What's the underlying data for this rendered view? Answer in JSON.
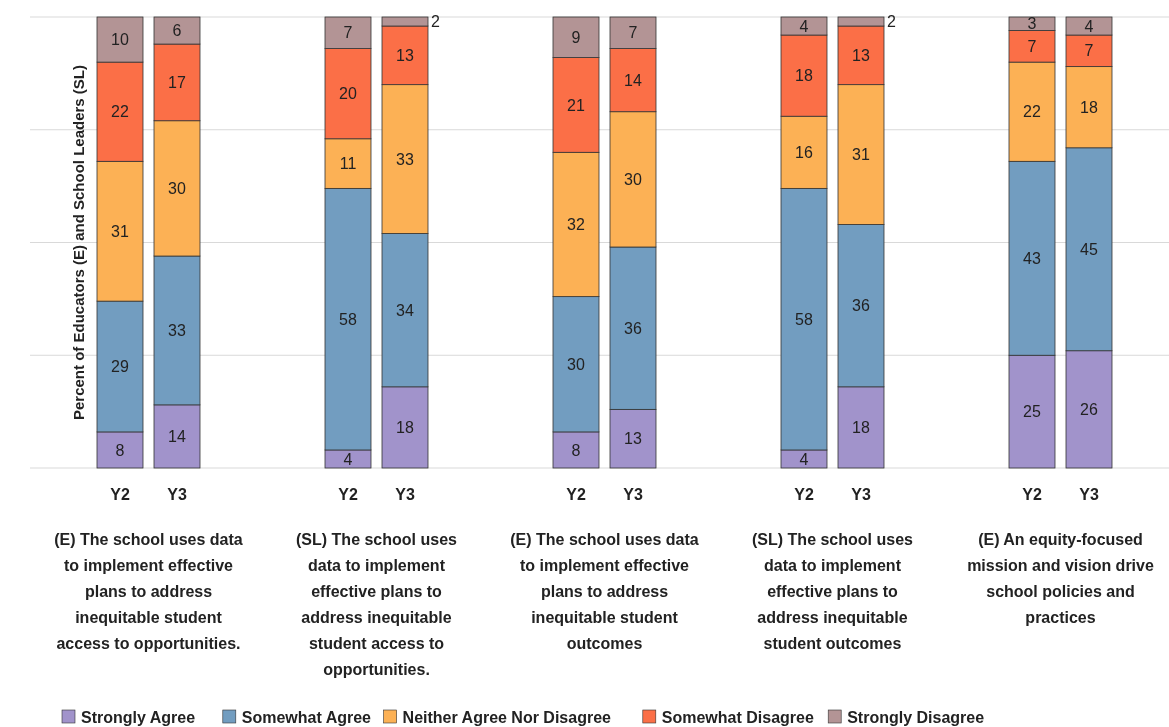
{
  "chart_data": {
    "type": "bar",
    "stacked": true,
    "ylabel": "Percent of Educators (E) and School Leaders (SL)",
    "categories": [
      "Y2",
      "Y3",
      null,
      null,
      "Y2",
      "Y3",
      null,
      null,
      "Y2",
      "Y3",
      null,
      null,
      "Y2",
      "Y3",
      null,
      null,
      "Y2",
      "Y3"
    ],
    "series": [
      {
        "name": "Strongly Agree",
        "color": "#a193cb",
        "values": [
          8,
          14,
          null,
          null,
          4,
          18,
          null,
          null,
          8,
          13,
          null,
          null,
          4,
          18,
          null,
          null,
          25,
          26
        ]
      },
      {
        "name": "Somewhat Agree",
        "color": "#729dc0",
        "values": [
          29,
          33,
          null,
          null,
          58,
          34,
          null,
          null,
          30,
          36,
          null,
          null,
          58,
          36,
          null,
          null,
          43,
          45
        ]
      },
      {
        "name": "Neither Agree Nor Disagree",
        "color": "#fcb155",
        "values": [
          31,
          30,
          null,
          null,
          11,
          33,
          null,
          null,
          32,
          30,
          null,
          null,
          16,
          31,
          null,
          null,
          22,
          18
        ]
      },
      {
        "name": "Somewhat Disagree",
        "color": "#fb6f47",
        "values": [
          22,
          17,
          null,
          null,
          20,
          13,
          null,
          null,
          21,
          14,
          null,
          null,
          18,
          13,
          null,
          null,
          7,
          7
        ]
      },
      {
        "name": "Strongly Disagree",
        "color": "#b39495",
        "values": [
          10,
          6,
          null,
          null,
          7,
          2,
          null,
          null,
          9,
          7,
          null,
          null,
          4,
          2,
          null,
          null,
          3,
          4
        ]
      }
    ],
    "ylim": [
      0,
      100
    ],
    "yticks": [
      {
        "value": 0,
        "label": null
      },
      {
        "value": 25,
        "label": null
      },
      {
        "value": 50,
        "label": null
      },
      {
        "value": 75,
        "label": null
      },
      {
        "value": 100,
        "label": null
      }
    ],
    "grid": "y",
    "tick_labels": "x",
    "data_labels": true,
    "legend": "bottom",
    "annotations": [
      "(E) The school uses data to implement effective plans to address inequitable student access to opportunities.",
      "(SL) The school uses data to implement effective plans to address inequitable student access to opportunities.",
      "(E) The school uses data to implement effective plans to address inequitable student outcomes",
      "(SL) The school uses data to implement effective plans to address inequitable student outcomes",
      "(E) An equity-focused mission and vision drive school policies and practices"
    ]
  }
}
